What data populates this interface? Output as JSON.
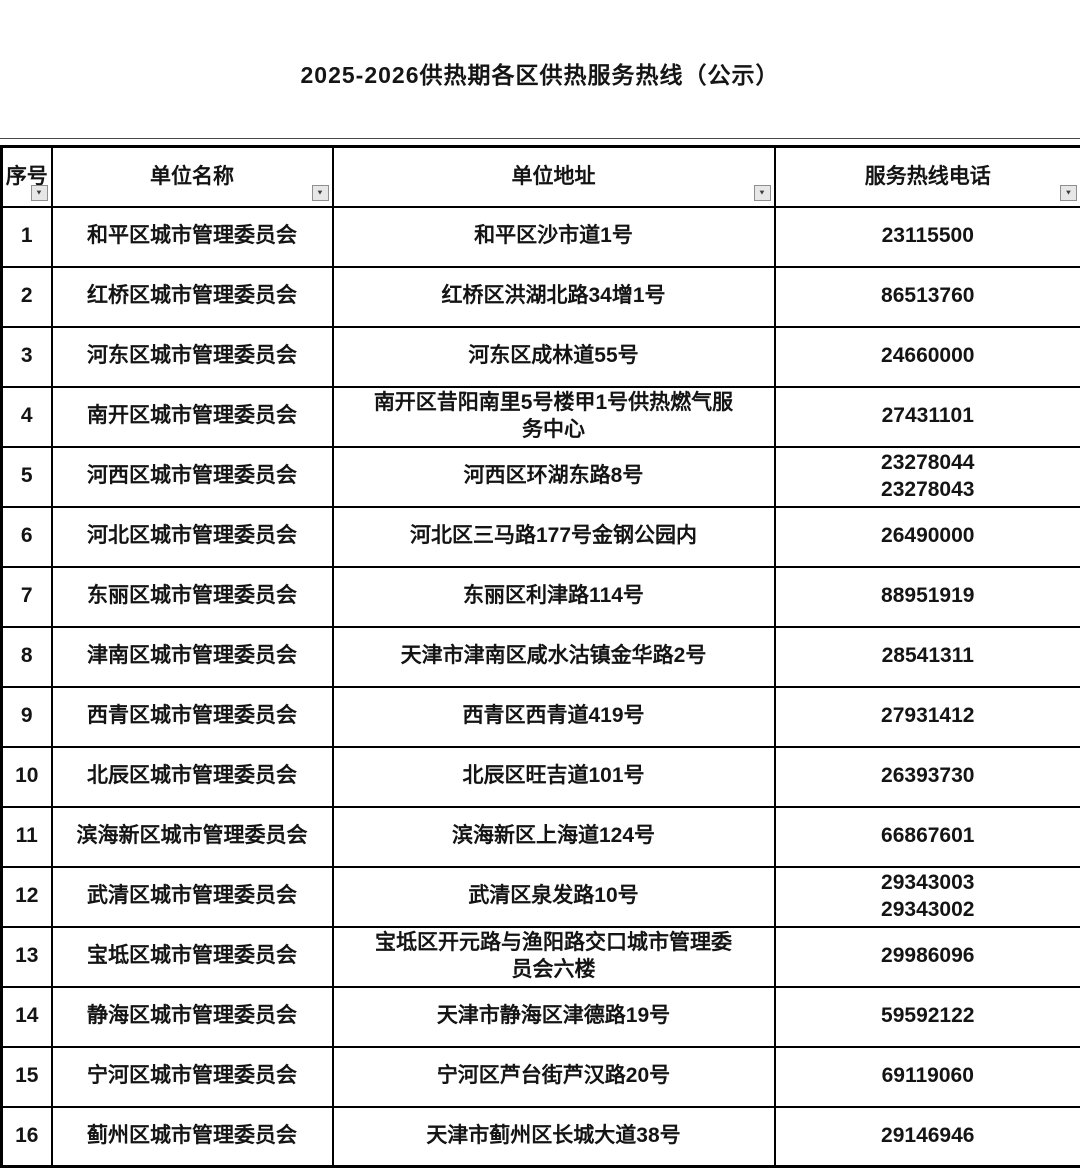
{
  "title": "2025-2026供热期各区供热服务热线（公示）",
  "filter_icon": "▼",
  "colors": {
    "text": "#141414",
    "border": "#000000",
    "background": "#ffffff",
    "filter_button_bg": "#e7e7e7",
    "filter_button_border": "#8f8f8f"
  },
  "table": {
    "columns": [
      "序号",
      "单位名称",
      "单位地址",
      "服务热线电话"
    ],
    "rows": [
      {
        "seq": "1",
        "name": "和平区城市管理委员会",
        "address": "和平区沙市道1号",
        "phone": "23115500"
      },
      {
        "seq": "2",
        "name": "红桥区城市管理委员会",
        "address": "红桥区洪湖北路34增1号",
        "phone": "86513760"
      },
      {
        "seq": "3",
        "name": "河东区城市管理委员会",
        "address": "河东区成林道55号",
        "phone": "24660000"
      },
      {
        "seq": "4",
        "name": "南开区城市管理委员会",
        "address": "南开区昔阳南里5号楼甲1号供热燃气服务中心",
        "phone": "27431101"
      },
      {
        "seq": "5",
        "name": "河西区城市管理委员会",
        "address": "河西区环湖东路8号",
        "phone": "23278044\n23278043"
      },
      {
        "seq": "6",
        "name": "河北区城市管理委员会",
        "address": "河北区三马路177号金钢公园内",
        "phone": "26490000"
      },
      {
        "seq": "7",
        "name": "东丽区城市管理委员会",
        "address": "东丽区利津路114号",
        "phone": "88951919"
      },
      {
        "seq": "8",
        "name": "津南区城市管理委员会",
        "address": "天津市津南区咸水沽镇金华路2号",
        "phone": "28541311"
      },
      {
        "seq": "9",
        "name": "西青区城市管理委员会",
        "address": "西青区西青道419号",
        "phone": "27931412"
      },
      {
        "seq": "10",
        "name": "北辰区城市管理委员会",
        "address": "北辰区旺吉道101号",
        "phone": "26393730"
      },
      {
        "seq": "11",
        "name": "滨海新区城市管理委员会",
        "address": "滨海新区上海道124号",
        "phone": "66867601"
      },
      {
        "seq": "12",
        "name": "武清区城市管理委员会",
        "address": "武清区泉发路10号",
        "phone": "29343003\n29343002"
      },
      {
        "seq": "13",
        "name": "宝坻区城市管理委员会",
        "address": "宝坻区开元路与渔阳路交口城市管理委员会六楼",
        "phone": "29986096"
      },
      {
        "seq": "14",
        "name": "静海区城市管理委员会",
        "address": "天津市静海区津德路19号",
        "phone": "59592122"
      },
      {
        "seq": "15",
        "name": "宁河区城市管理委员会",
        "address": "宁河区芦台街芦汉路20号",
        "phone": "69119060"
      },
      {
        "seq": "16",
        "name": "蓟州区城市管理委员会",
        "address": "天津市蓟州区长城大道38号",
        "phone": "29146946"
      }
    ]
  }
}
